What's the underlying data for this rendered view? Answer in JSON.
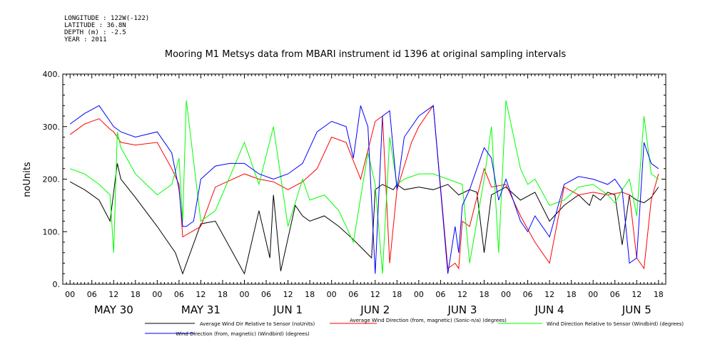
{
  "meta": {
    "longitude": "LONGITUDE : 122W(-122)",
    "latitude": "LATITUDE : 36.8N",
    "depth": "DEPTH (m) : -2.5",
    "year": "YEAR : 2011"
  },
  "chart_data": {
    "type": "line",
    "title": "Mooring M1 Metsys data from MBARI instrument id 1396 at original sampling intervals",
    "ylabel": "noUnits",
    "xlabel": "",
    "ylim": [
      0,
      400
    ],
    "yticks": [
      "0.",
      "100.",
      "200.",
      "300.",
      "400."
    ],
    "x_hours_range": [
      -2,
      164
    ],
    "x_tick_labels": [
      "00",
      "06",
      "12",
      "18",
      "00",
      "06",
      "12",
      "18",
      "00",
      "06",
      "12",
      "18",
      "00",
      "06",
      "12",
      "18",
      "00",
      "06",
      "12",
      "18",
      "00",
      "06",
      "12",
      "18",
      "00",
      "06",
      "12",
      "18"
    ],
    "day_labels": [
      "MAY 30",
      "MAY 31",
      "JUN  1",
      "JUN  2",
      "JUN  3",
      "JUN  4",
      "JUN  5"
    ],
    "grid": false,
    "legend_position": "bottom",
    "series": [
      {
        "name": "Average Wind Dir Relative to Sensor (noUnits)",
        "color": "#000000",
        "x": [
          0,
          4,
          8,
          11,
          12,
          13,
          14,
          18,
          24,
          29,
          31,
          36,
          40,
          48,
          52,
          55,
          56,
          58,
          62,
          64,
          66,
          70,
          74,
          78,
          83,
          84,
          86,
          89,
          90,
          92,
          96,
          100,
          104,
          107,
          110,
          112,
          114,
          116,
          120,
          124,
          128,
          132,
          136,
          140,
          143,
          144,
          146,
          148,
          150,
          152,
          154,
          156,
          158,
          160,
          162
        ],
        "y": [
          195,
          180,
          160,
          120,
          175,
          230,
          200,
          165,
          110,
          60,
          20,
          115,
          120,
          20,
          140,
          50,
          170,
          25,
          150,
          130,
          120,
          130,
          110,
          85,
          50,
          180,
          190,
          180,
          190,
          180,
          185,
          180,
          190,
          170,
          180,
          175,
          60,
          170,
          185,
          160,
          175,
          120,
          150,
          170,
          150,
          170,
          160,
          175,
          170,
          75,
          170,
          160,
          155,
          165,
          185
        ]
      },
      {
        "name": "Average Wind Direction (from, magnetic) (Sonic-n/a) (degrees)",
        "color": "#ff0000",
        "x": [
          0,
          4,
          8,
          11,
          12,
          14,
          18,
          24,
          28,
          30,
          31,
          36,
          40,
          48,
          52,
          56,
          60,
          64,
          68,
          72,
          76,
          80,
          84,
          86,
          88,
          90,
          94,
          96,
          98,
          100,
          104,
          106,
          107,
          108,
          110,
          114,
          116,
          120,
          124,
          128,
          132,
          136,
          140,
          144,
          148,
          152,
          154,
          156,
          158,
          160,
          162
        ],
        "y": [
          285,
          305,
          315,
          295,
          290,
          270,
          265,
          270,
          220,
          190,
          90,
          110,
          185,
          210,
          200,
          195,
          180,
          195,
          220,
          280,
          270,
          200,
          310,
          320,
          40,
          180,
          270,
          300,
          320,
          340,
          30,
          40,
          30,
          120,
          110,
          220,
          185,
          190,
          130,
          80,
          40,
          185,
          170,
          175,
          170,
          175,
          170,
          50,
          30,
          160,
          210
        ]
      },
      {
        "name": "Wind Direction Relative to Sensor (Windbird) (degrees)",
        "color": "#00ff00",
        "x": [
          0,
          4,
          8,
          11,
          12,
          13,
          14,
          18,
          24,
          28,
          30,
          31,
          32,
          36,
          40,
          48,
          52,
          56,
          60,
          64,
          66,
          70,
          74,
          78,
          82,
          84,
          86,
          88,
          90,
          92,
          96,
          100,
          104,
          108,
          110,
          114,
          116,
          118,
          120,
          124,
          126,
          128,
          132,
          136,
          140,
          144,
          148,
          150,
          152,
          154,
          156,
          158,
          160,
          162
        ],
        "y": [
          220,
          210,
          190,
          170,
          60,
          290,
          260,
          210,
          170,
          190,
          240,
          120,
          350,
          120,
          140,
          270,
          190,
          300,
          110,
          200,
          160,
          170,
          140,
          80,
          250,
          190,
          20,
          280,
          190,
          200,
          210,
          210,
          200,
          190,
          40,
          200,
          300,
          60,
          350,
          220,
          190,
          200,
          150,
          160,
          185,
          190,
          170,
          155,
          180,
          200,
          130,
          320,
          210,
          200
        ]
      },
      {
        "name": "Wind Direction (from, magnetic) (Windbird) (degrees)",
        "color": "#0000ff",
        "x": [
          0,
          4,
          8,
          11,
          12,
          14,
          18,
          24,
          28,
          30,
          31,
          32,
          34,
          36,
          40,
          44,
          48,
          52,
          56,
          60,
          64,
          68,
          72,
          76,
          78,
          80,
          82,
          84,
          86,
          88,
          90,
          92,
          96,
          100,
          104,
          106,
          107,
          108,
          110,
          114,
          116,
          118,
          120,
          124,
          126,
          128,
          132,
          136,
          140,
          144,
          148,
          150,
          152,
          154,
          156,
          158,
          160,
          162
        ],
        "y": [
          305,
          325,
          340,
          310,
          300,
          290,
          280,
          290,
          250,
          180,
          110,
          110,
          120,
          200,
          225,
          230,
          230,
          210,
          200,
          210,
          230,
          290,
          310,
          300,
          240,
          340,
          300,
          20,
          320,
          330,
          180,
          280,
          320,
          340,
          20,
          110,
          60,
          150,
          180,
          260,
          240,
          160,
          200,
          120,
          100,
          130,
          90,
          190,
          205,
          200,
          190,
          200,
          180,
          40,
          50,
          270,
          230,
          220
        ]
      }
    ]
  }
}
